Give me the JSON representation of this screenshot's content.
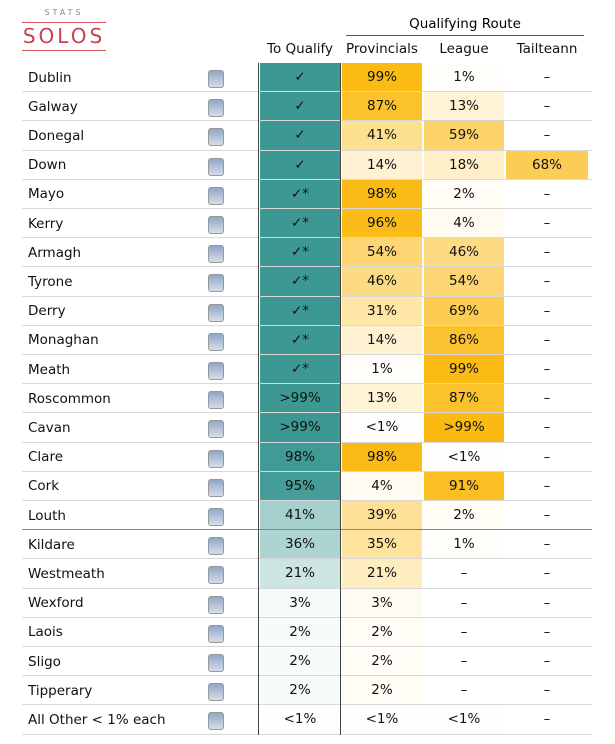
{
  "logo": {
    "top": "STATS",
    "main": "SOLOS"
  },
  "header": {
    "group": "Qualifying Route",
    "columns": [
      "To Qualify",
      "Provincials",
      "League",
      "Tailteann"
    ]
  },
  "table": {
    "rows": [
      [
        "Dublin",
        "✓",
        "99%",
        "1%",
        "–"
      ],
      [
        "Galway",
        "✓",
        "87%",
        "13%",
        "–"
      ],
      [
        "Donegal",
        "✓",
        "41%",
        "59%",
        "–"
      ],
      [
        "Down",
        "✓",
        "14%",
        "18%",
        "68%"
      ],
      [
        "Mayo",
        "✓*",
        "98%",
        "2%",
        "–"
      ],
      [
        "Kerry",
        "✓*",
        "96%",
        "4%",
        "–"
      ],
      [
        "Armagh",
        "✓*",
        "54%",
        "46%",
        "–"
      ],
      [
        "Tyrone",
        "✓*",
        "46%",
        "54%",
        "–"
      ],
      [
        "Derry",
        "✓*",
        "31%",
        "69%",
        "–"
      ],
      [
        "Monaghan",
        "✓*",
        "14%",
        "86%",
        "–"
      ],
      [
        "Meath",
        "✓*",
        "1%",
        "99%",
        "–"
      ],
      [
        "Roscommon",
        ">99%",
        "13%",
        "87%",
        "–"
      ],
      [
        "Cavan",
        ">99%",
        "<1%",
        ">99%",
        "–"
      ],
      [
        "Clare",
        "98%",
        "98%",
        "<1%",
        "–"
      ],
      [
        "Cork",
        "95%",
        "4%",
        "91%",
        "–"
      ],
      [
        "Louth",
        "41%",
        "39%",
        "2%",
        "–"
      ],
      [
        "Kildare",
        "36%",
        "35%",
        "1%",
        "–"
      ],
      [
        "Westmeath",
        "21%",
        "21%",
        "–",
        "–"
      ],
      [
        "Wexford",
        "3%",
        "3%",
        "–",
        "–"
      ],
      [
        "Laois",
        "2%",
        "2%",
        "–",
        "–"
      ],
      [
        "Sligo",
        "2%",
        "2%",
        "–",
        "–"
      ],
      [
        "Tipperary",
        "2%",
        "2%",
        "–",
        "–"
      ],
      [
        "All Other < 1% each",
        "<1%",
        "<1%",
        "<1%",
        "–"
      ]
    ]
  }
}
